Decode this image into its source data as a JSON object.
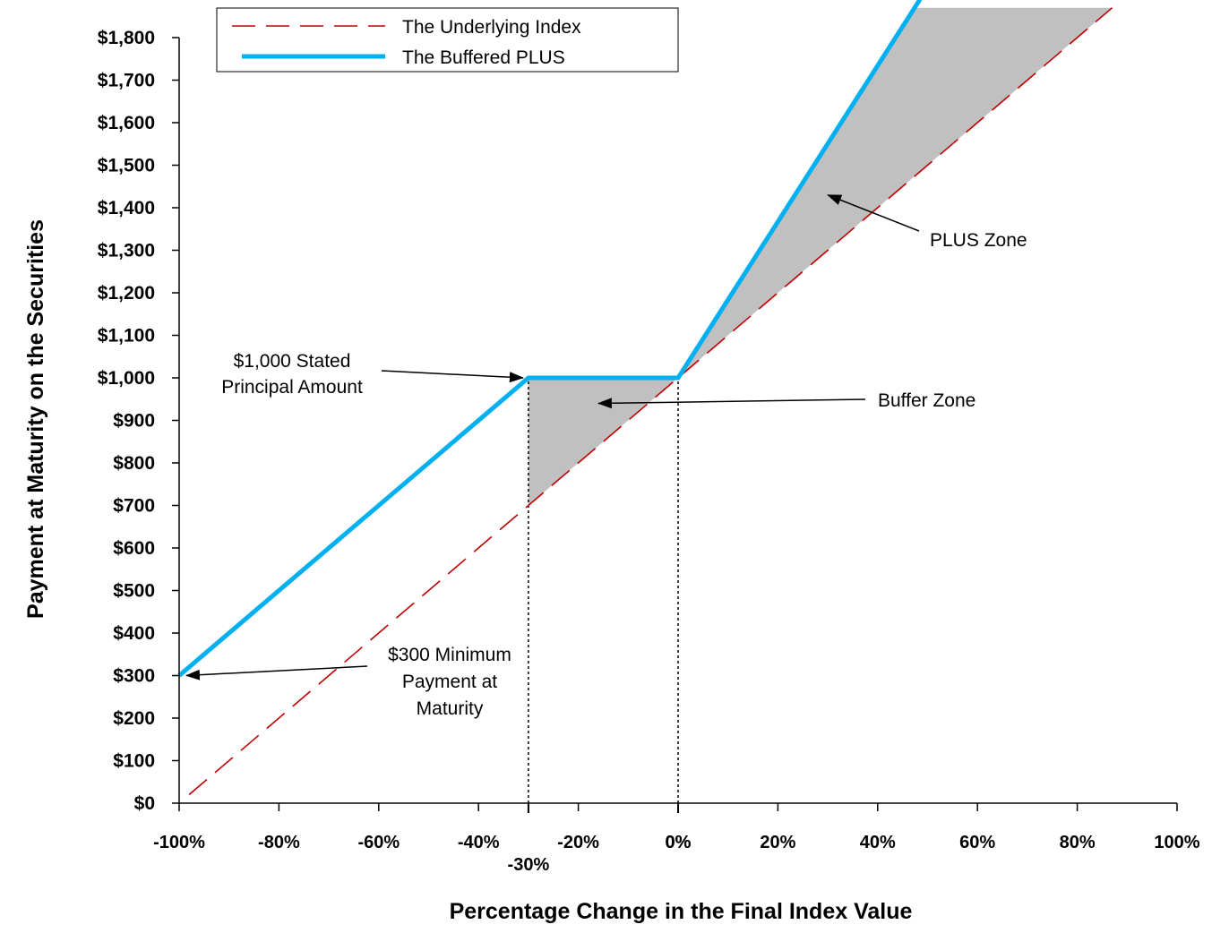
{
  "chart_data": {
    "type": "line",
    "xlabel": "Percentage Change in the Final Index Value",
    "ylabel": "Payment at Maturity on the Securities",
    "xlim": [
      -100,
      100
    ],
    "ylim": [
      0,
      1800
    ],
    "x_ticks": [
      "-100%",
      "-80%",
      "-60%",
      "-40%",
      "-20%",
      "0%",
      "20%",
      "40%",
      "60%",
      "80%",
      "100%"
    ],
    "x_ticks_extra": [
      "-30%",
      "0%"
    ],
    "y_ticks": [
      "$0",
      "$100",
      "$200",
      "$300",
      "$400",
      "$500",
      "$600",
      "$700",
      "$800",
      "$900",
      "$1,000",
      "$1,100",
      "$1,200",
      "$1,300",
      "$1,400",
      "$1,500",
      "$1,600",
      "$1,700",
      "$1,800"
    ],
    "grid": false,
    "legend_position": "top-left",
    "series": [
      {
        "name": "The Underlying Index",
        "color": "#c00000",
        "style": "dashed",
        "x": [
          -98,
          87
        ],
        "y": [
          20,
          1870
        ]
      },
      {
        "name": "The Buffered PLUS",
        "color": "#00b0f0",
        "style": "solid",
        "x": [
          -100,
          -30,
          0,
          48.5
        ],
        "y": [
          300,
          1000,
          1000,
          1890
        ]
      }
    ],
    "shaded_regions": [
      {
        "name": "Buffer Zone",
        "color": "#c0c0c0",
        "x": [
          -30,
          0,
          -30
        ],
        "y": [
          1000,
          1000,
          700
        ]
      },
      {
        "name": "PLUS Zone",
        "color": "#c0c0c0",
        "x": [
          0,
          47,
          87
        ],
        "y": [
          1000,
          1870,
          1870
        ]
      }
    ],
    "reference_lines": [
      {
        "x": -30
      },
      {
        "x": 0
      }
    ],
    "annotations": [
      {
        "lines": [
          "$1,000 Stated",
          "Principal Amount"
        ],
        "target": [
          -30,
          1000
        ]
      },
      {
        "lines": [
          "PLUS Zone"
        ],
        "target": [
          30,
          1430
        ]
      },
      {
        "lines": [
          "Buffer  Zone"
        ],
        "target": [
          -16,
          940
        ]
      },
      {
        "lines": [
          "$300 Minimum",
          "Payment at",
          "Maturity"
        ],
        "target": [
          -100,
          300
        ]
      }
    ]
  }
}
